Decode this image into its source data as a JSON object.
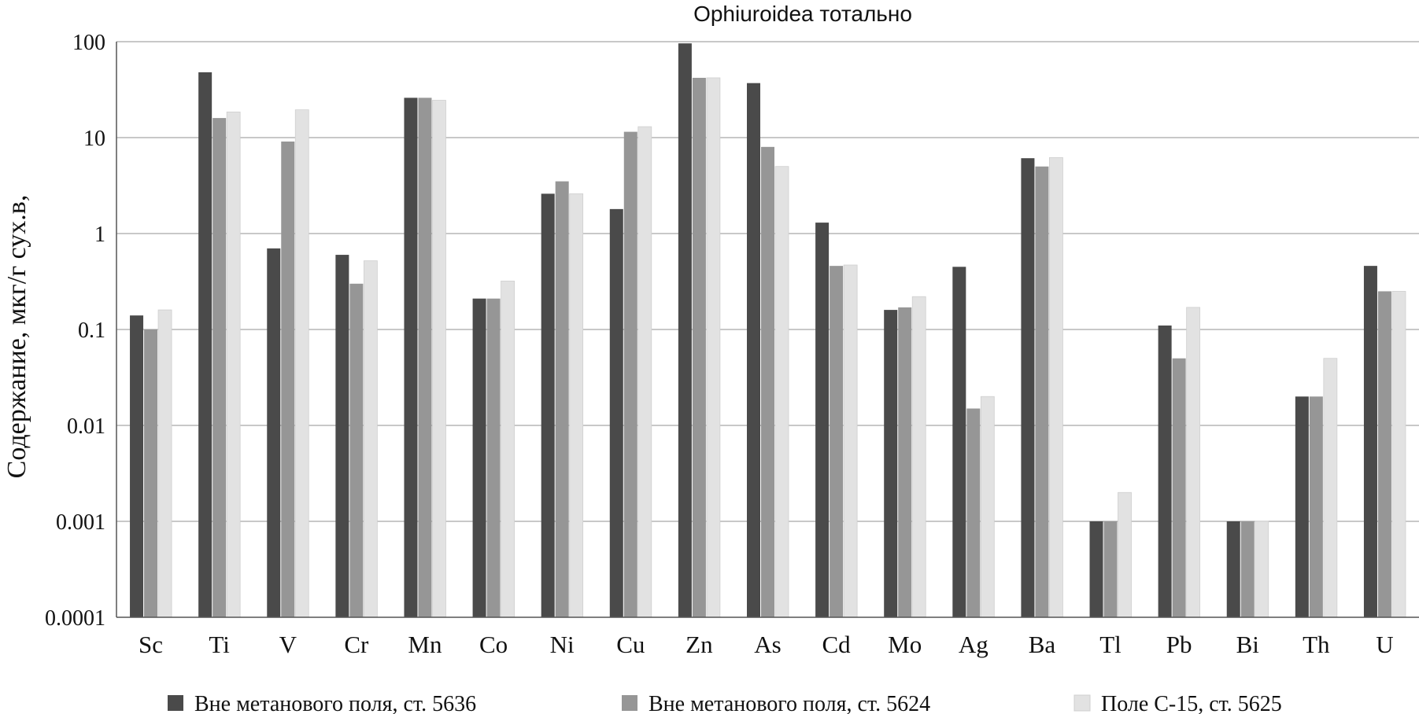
{
  "chart_data": {
    "type": "bar",
    "title": "Ophiuroidea тотально",
    "xlabel": "",
    "ylabel": "Содержание, мкг/г сух.в,",
    "yscale": "log",
    "ylim": [
      0.0001,
      100
    ],
    "yticks": [
      "0.0001",
      "0.001",
      "0.01",
      "0.1",
      "1",
      "10",
      "100"
    ],
    "grid": "horizontal",
    "legend_position": "bottom",
    "categories": [
      "Sc",
      "Ti",
      "V",
      "Cr",
      "Mn",
      "Co",
      "Ni",
      "Cu",
      "Zn",
      "As",
      "Cd",
      "Mo",
      "Ag",
      "Ba",
      "Tl",
      "Pb",
      "Bi",
      "Th",
      "U"
    ],
    "series": [
      {
        "name": "Вне метанового поля, ст. 5636",
        "color": "#4a4a4a",
        "values": [
          0.14,
          48,
          0.7,
          0.6,
          26,
          0.21,
          2.6,
          1.8,
          96,
          37,
          1.3,
          0.16,
          0.45,
          6.1,
          0.001,
          0.11,
          0.001,
          0.02,
          0.46
        ]
      },
      {
        "name": "Вне метанового поля, ст. 5624",
        "color": "#969696",
        "values": [
          0.1,
          16,
          9.1,
          0.3,
          26,
          0.21,
          3.5,
          11.5,
          42,
          8,
          0.46,
          0.17,
          0.015,
          5,
          0.001,
          0.05,
          0.001,
          0.02,
          0.25
        ]
      },
      {
        "name": "Поле С-15, ст. 5625",
        "color": "#e2e2e2",
        "values": [
          0.16,
          18.5,
          19.5,
          0.52,
          24.5,
          0.32,
          2.6,
          13,
          42,
          5,
          0.47,
          0.22,
          0.02,
          6.2,
          0.002,
          0.17,
          0.001,
          0.05,
          0.25
        ]
      }
    ]
  }
}
